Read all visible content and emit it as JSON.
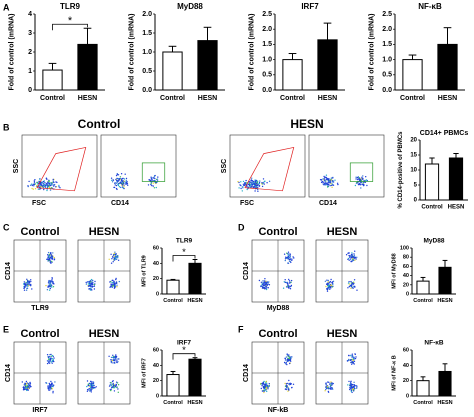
{
  "chart_data": [
    {
      "type": "bar",
      "title": "TLR9",
      "y_label": "Fold of control (mRNA)",
      "categories": [
        "Control",
        "HESN"
      ],
      "values": [
        1.05,
        2.4
      ],
      "errors": [
        0.35,
        0.85
      ],
      "colors": [
        "#ffffff",
        "#000000"
      ],
      "ylim": [
        0,
        4
      ],
      "yticks": [
        0,
        1,
        2,
        3,
        4
      ],
      "annotation": "*"
    },
    {
      "type": "bar",
      "title": "MyD88",
      "y_label": "Fold of control (mRNA)",
      "categories": [
        "Control",
        "HESN"
      ],
      "values": [
        1.0,
        1.3
      ],
      "errors": [
        0.15,
        0.35
      ],
      "colors": [
        "#ffffff",
        "#000000"
      ],
      "ylim": [
        0,
        2
      ],
      "yticks": [
        {
          "value": 0,
          "label": "0.0"
        },
        0.5,
        {
          "value": 1,
          "label": "1.0"
        },
        1.5,
        {
          "value": 2,
          "label": "2.0"
        }
      ]
    },
    {
      "type": "bar",
      "title": "IRF7",
      "y_label": "Fold of control (mRNA)",
      "categories": [
        "Control",
        "HESN"
      ],
      "values": [
        1.0,
        1.65
      ],
      "errors": [
        0.2,
        0.55
      ],
      "colors": [
        "#ffffff",
        "#000000"
      ],
      "ylim": [
        0,
        2.5
      ],
      "yticks": [
        {
          "value": 0,
          "label": "0.0"
        },
        0.5,
        {
          "value": 1,
          "label": "1.0"
        },
        1.5,
        {
          "value": 2,
          "label": "2.0"
        },
        2.5
      ]
    },
    {
      "type": "bar",
      "title": "NF-κB",
      "y_label": "Fold of control (mRNA)",
      "categories": [
        "Control",
        "HESN"
      ],
      "values": [
        1.0,
        1.5
      ],
      "errors": [
        0.15,
        0.55
      ],
      "colors": [
        "#ffffff",
        "#000000"
      ],
      "ylim": [
        0,
        2.5
      ],
      "yticks": [
        {
          "value": 0,
          "label": "0.0"
        },
        0.5,
        {
          "value": 1,
          "label": "1.0"
        },
        1.5,
        {
          "value": 2,
          "label": "2.0"
        },
        2.5
      ]
    },
    {
      "type": "bar",
      "title": "CD14+ PBMCs",
      "y_label": "% CD14-positive of PBMCs",
      "categories": [
        "Control",
        "HESN"
      ],
      "values": [
        12,
        14
      ],
      "errors": [
        2,
        1.5
      ],
      "colors": [
        "#ffffff",
        "#000000"
      ],
      "ylim": [
        0,
        20
      ],
      "yticks": [
        0,
        5,
        10,
        15,
        20
      ]
    },
    {
      "type": "bar",
      "title": "TLR9",
      "y_label": "MFI of TLR9",
      "categories": [
        "Control",
        "HESN"
      ],
      "values": [
        18,
        40
      ],
      "errors": [
        1,
        5
      ],
      "colors": [
        "#ffffff",
        "#000000"
      ],
      "ylim": [
        0,
        60
      ],
      "yticks": [
        0,
        20,
        40,
        60
      ],
      "annotation": "*"
    },
    {
      "type": "bar",
      "title": "MyD88",
      "y_label": "MFI of MyD88",
      "categories": [
        "Control",
        "HESN"
      ],
      "values": [
        28,
        58
      ],
      "errors": [
        8,
        15
      ],
      "colors": [
        "#ffffff",
        "#000000"
      ],
      "ylim": [
        0,
        100
      ],
      "yticks": [
        0,
        20,
        40,
        60,
        80,
        100
      ]
    },
    {
      "type": "bar",
      "title": "IRF7",
      "y_label": "MFI of IRF7",
      "categories": [
        "Control",
        "HESN"
      ],
      "values": [
        28,
        48
      ],
      "errors": [
        4,
        2
      ],
      "colors": [
        "#ffffff",
        "#000000"
      ],
      "ylim": [
        0,
        60
      ],
      "yticks": [
        0,
        20,
        40,
        60
      ],
      "annotation": "*"
    },
    {
      "type": "bar",
      "title": "NF-κB",
      "y_label": "MFI of NF-κ B",
      "categories": [
        "Control",
        "HESN"
      ],
      "values": [
        20,
        32
      ],
      "errors": [
        5,
        10
      ],
      "colors": [
        "#ffffff",
        "#000000"
      ],
      "ylim": [
        0,
        60
      ],
      "yticks": [
        0,
        20,
        40,
        60
      ]
    }
  ],
  "panel_labels": [
    "A",
    "B",
    "C",
    "D",
    "E",
    "F"
  ],
  "flow_groups": [
    {
      "titles": [
        "Control"
      ],
      "x_labels": [
        "FSC",
        "CD14"
      ],
      "y_label": "SSC"
    },
    {
      "titles": [
        "HESN"
      ],
      "x_labels": [
        "FSC",
        "CD14"
      ],
      "y_label": "SSC"
    },
    {
      "titles": [
        "Control",
        "HESN"
      ],
      "x_labels": [
        "TLR9"
      ],
      "y_label": "CD14"
    },
    {
      "titles": [
        "Control",
        "HESN"
      ],
      "x_labels": [
        "MyD88"
      ],
      "y_label": "CD14"
    },
    {
      "titles": [
        "Control",
        "HESN"
      ],
      "x_labels": [
        "IRF7"
      ],
      "y_label": "CD14"
    },
    {
      "titles": [
        "Control",
        "HESN"
      ],
      "x_labels": [
        "NF-kB"
      ],
      "y_label": "CD14"
    }
  ]
}
